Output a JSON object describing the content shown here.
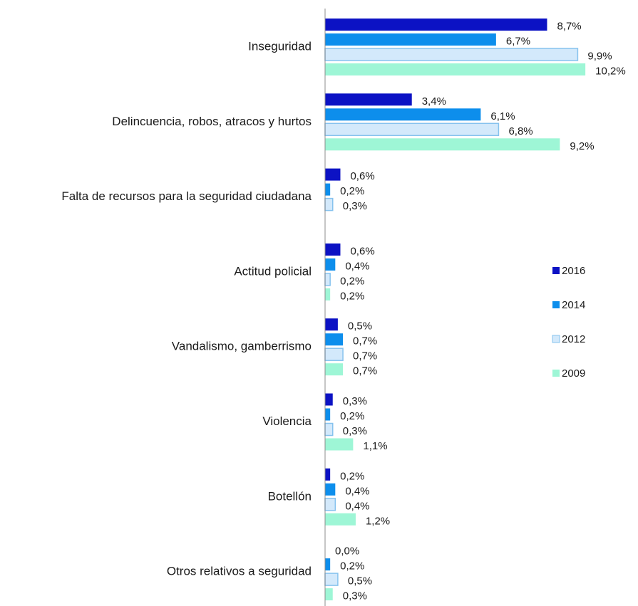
{
  "chart_data": {
    "type": "bar",
    "orientation": "horizontal",
    "categories": [
      "Inseguridad",
      "Delincuencia, robos, atracos y hurtos",
      "Falta de recursos para la seguridad ciudadana",
      "Actitud policial",
      "Vandalismo, gamberrismo",
      "Violencia",
      "Botellón",
      "Otros relativos a seguridad"
    ],
    "series": [
      {
        "name": "2016",
        "color": "#0c12c4",
        "values": [
          8.7,
          3.4,
          0.6,
          0.6,
          0.5,
          0.3,
          0.2,
          0.0
        ],
        "value_labels": [
          "8,7%",
          "3,4%",
          "0,6%",
          "0,6%",
          "0,5%",
          "0,3%",
          "0,2%",
          "0,0%"
        ]
      },
      {
        "name": "2014",
        "color": "#0d8eec",
        "values": [
          6.7,
          6.1,
          0.2,
          0.4,
          0.7,
          0.2,
          0.4,
          0.2
        ],
        "value_labels": [
          "6,7%",
          "6,1%",
          "0,2%",
          "0,4%",
          "0,7%",
          "0,2%",
          "0,4%",
          "0,2%"
        ]
      },
      {
        "name": "2012",
        "color": "#d3e9fb",
        "edgecolor": "#86c2ee",
        "values": [
          9.9,
          6.8,
          0.3,
          0.2,
          0.7,
          0.3,
          0.4,
          0.5
        ],
        "value_labels": [
          "9,9%",
          "6,8%",
          "0,3%",
          "0,2%",
          "0,7%",
          "0,3%",
          "0,4%",
          "0,5%"
        ]
      },
      {
        "name": "2009",
        "color": "#9ef6d6",
        "values": [
          10.2,
          9.2,
          null,
          0.2,
          0.7,
          1.1,
          1.2,
          0.3
        ],
        "value_labels": [
          "10,2%",
          "9,2%",
          null,
          "0,2%",
          "0,7%",
          "1,1%",
          "1,2%",
          "0,3%"
        ]
      }
    ],
    "legend": "right"
  }
}
